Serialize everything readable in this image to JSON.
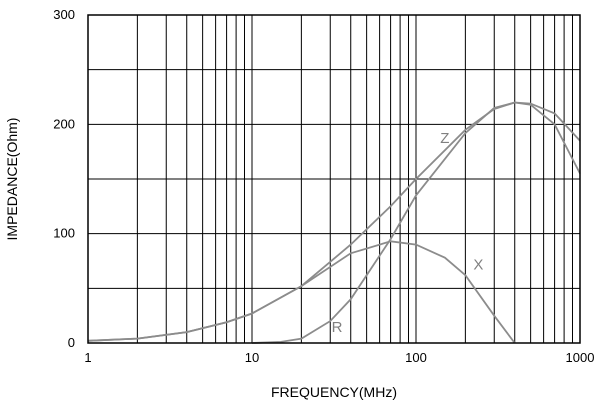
{
  "chart_data": {
    "type": "line",
    "xlabel": "FREQUENCY(MHz)",
    "ylabel": "IMPEDANCE(Ohm)",
    "x_scale": "log",
    "xlim": [
      1,
      1000
    ],
    "ylim": [
      0,
      300
    ],
    "x_ticks": [
      "1",
      "10",
      "100",
      "1000"
    ],
    "y_ticks": [
      "0",
      "100",
      "200",
      "300"
    ],
    "grid": true,
    "series": [
      {
        "name": "Z",
        "color": "#8c8c8c",
        "x": [
          1,
          2,
          4,
          7,
          10,
          20,
          40,
          70,
          100,
          200,
          300,
          400,
          500,
          700,
          1000
        ],
        "y": [
          2,
          4,
          10,
          19,
          27,
          52,
          90,
          125,
          150,
          195,
          214,
          220,
          218,
          200,
          155
        ]
      },
      {
        "name": "X",
        "color": "#8c8c8c",
        "x": [
          1,
          2,
          4,
          7,
          10,
          20,
          40,
          70,
          100,
          150,
          200,
          300,
          400
        ],
        "y": [
          2,
          4,
          10,
          19,
          27,
          52,
          82,
          93,
          90,
          78,
          62,
          25,
          0
        ]
      },
      {
        "name": "R",
        "color": "#8c8c8c",
        "x": [
          10,
          15,
          20,
          30,
          40,
          70,
          100,
          200,
          300,
          400,
          500,
          700,
          1000
        ],
        "y": [
          0,
          1,
          4,
          20,
          40,
          95,
          135,
          192,
          215,
          220,
          219,
          210,
          185
        ]
      }
    ],
    "annotations": [
      {
        "text": "Z",
        "x": 150,
        "y": 183
      },
      {
        "text": "X",
        "x": 240,
        "y": 67
      },
      {
        "text": "R",
        "x": 33,
        "y": 10
      }
    ]
  }
}
